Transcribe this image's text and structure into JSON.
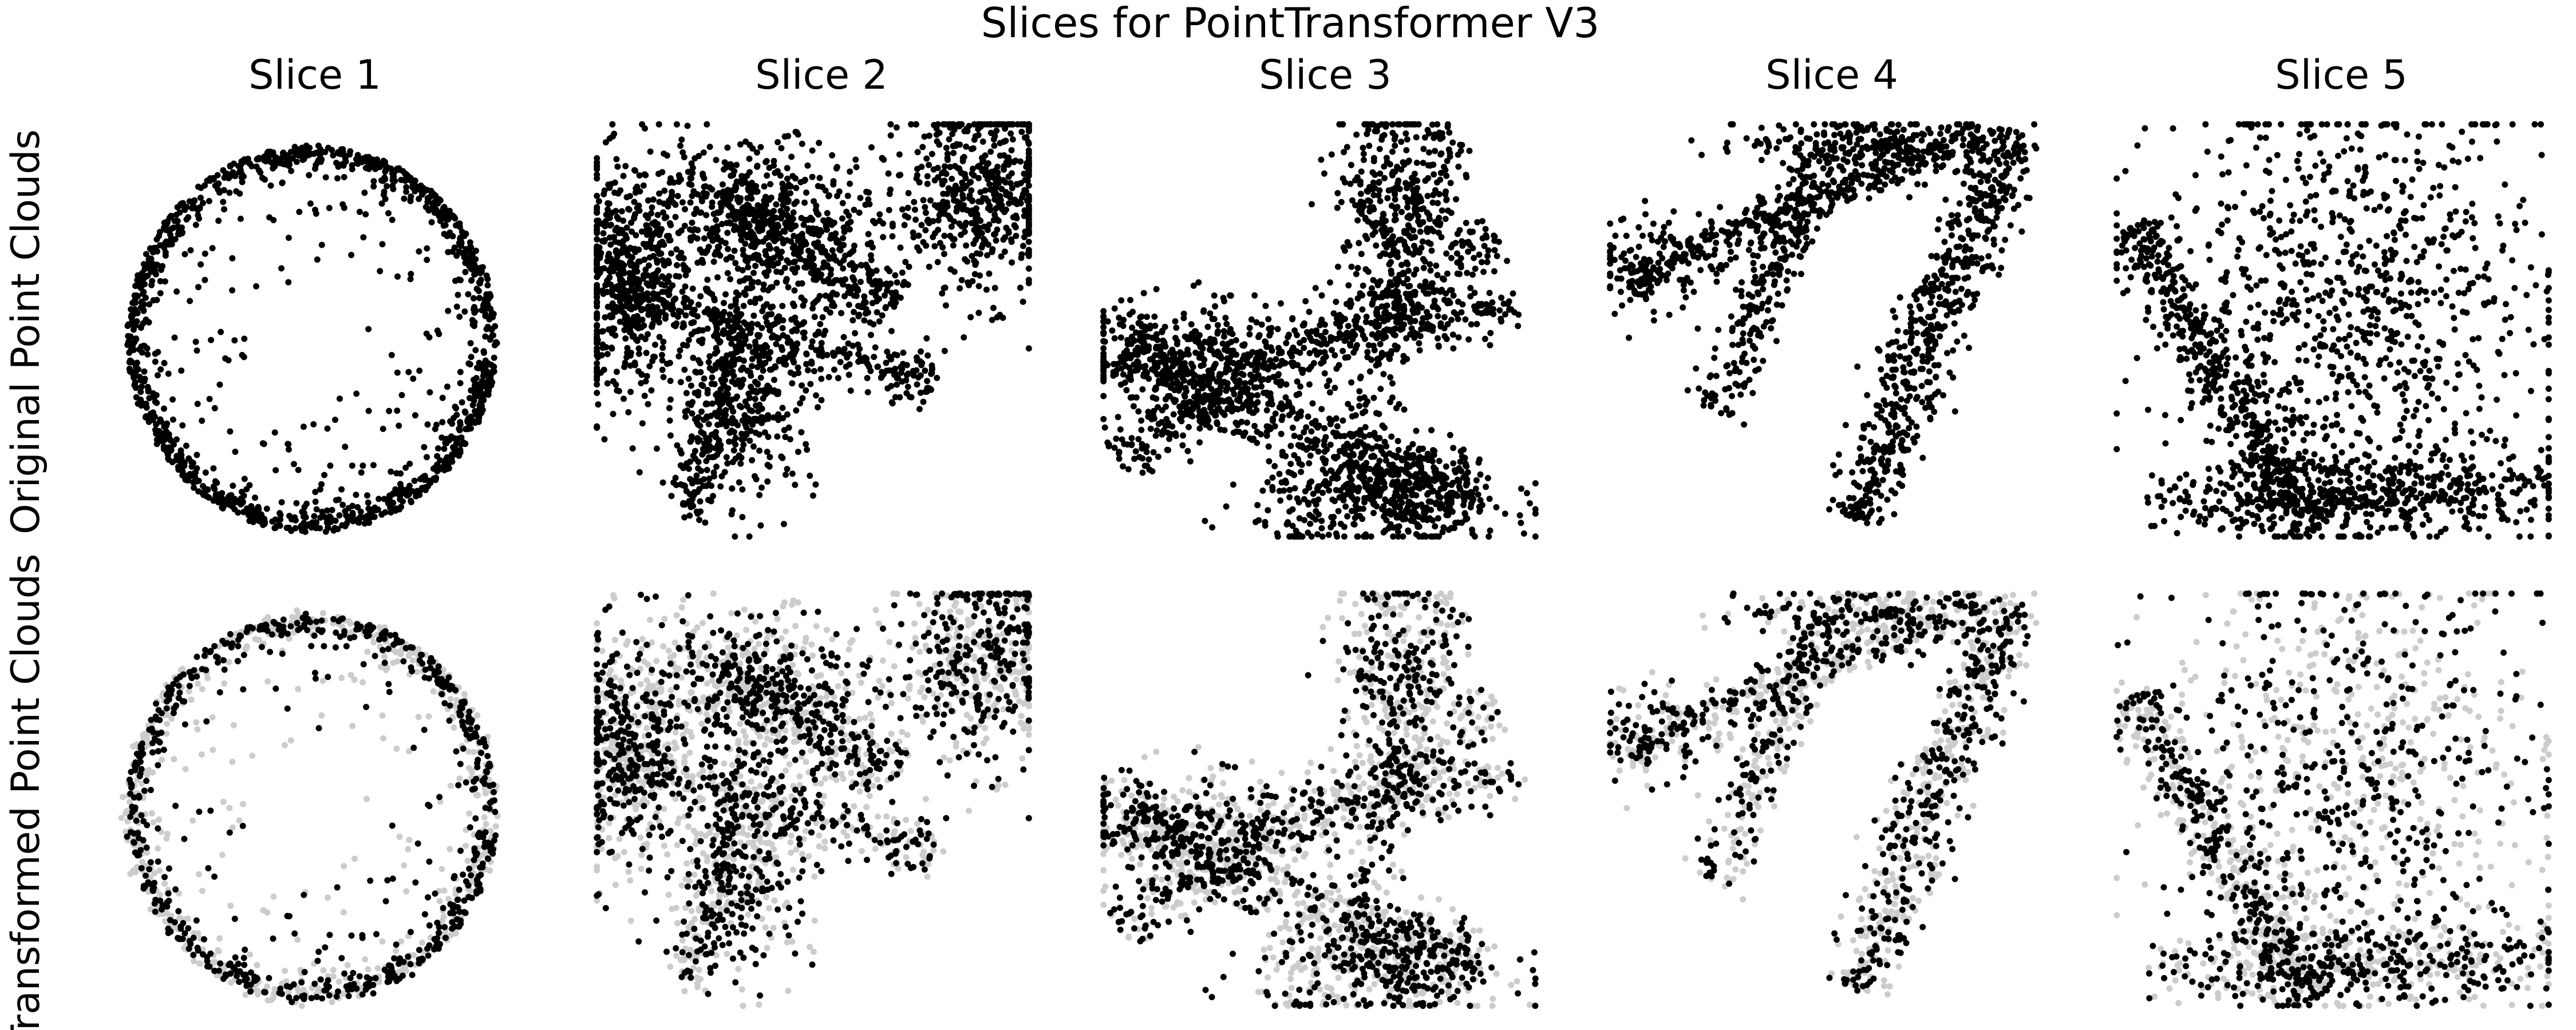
{
  "figure": {
    "title": "Slices for PointTransformer V3",
    "column_titles": [
      "Slice 1",
      "Slice 2",
      "Slice 3",
      "Slice 4",
      "Slice 5"
    ],
    "row_labels": [
      "Original Point Clouds",
      "Transformed Point Clouds"
    ],
    "colors": {
      "point": "#000000",
      "faded_point": "#cccccc",
      "background": "#ffffff"
    }
  },
  "chart_data": {
    "type": "scatter",
    "title": "Slices for PointTransformer V3",
    "grid": false,
    "axes_visible": false,
    "xlim": [
      0,
      1
    ],
    "ylim": [
      0,
      1
    ],
    "panels_layout": {
      "rows": 2,
      "cols": 5
    },
    "rows": [
      {
        "label": "Original Point Clouds",
        "series": [
          {
            "color": "#000000"
          }
        ]
      },
      {
        "label": "Transformed Point Clouds",
        "series": [
          {
            "color": "#cccccc"
          },
          {
            "color": "#000000"
          }
        ]
      }
    ],
    "columns": [
      {
        "title": "Slice 1",
        "shape": "ring",
        "center": [
          0.5,
          0.48
        ],
        "radii": [
          0.42,
          0.46
        ],
        "thickness": 0.06,
        "points": 1300
      },
      {
        "title": "Slice 2",
        "shape": "strands",
        "blobs": [
          {
            "c": [
              0.07,
              0.6
            ],
            "s": [
              0.06,
              0.14
            ],
            "n": 450
          },
          {
            "c": [
              0.88,
              0.82
            ],
            "s": [
              0.09,
              0.12
            ],
            "n": 520
          },
          {
            "c": [
              0.35,
              0.75
            ],
            "s": [
              0.16,
              0.1
            ],
            "n": 600
          },
          {
            "c": [
              0.35,
              0.35
            ],
            "s": [
              0.08,
              0.12
            ],
            "n": 350
          }
        ],
        "lines": [
          {
            "a": [
              0.05,
              0.58
            ],
            "b": [
              0.78,
              0.38
            ],
            "w": 0.035,
            "n": 350
          },
          {
            "a": [
              0.3,
              0.82
            ],
            "b": [
              0.68,
              0.55
            ],
            "w": 0.04,
            "n": 300
          },
          {
            "a": [
              0.22,
              0.05
            ],
            "b": [
              0.3,
              0.45
            ],
            "w": 0.03,
            "n": 150
          }
        ]
      },
      {
        "title": "Slice 3",
        "shape": "strands",
        "blobs": [
          {
            "c": [
              0.64,
              0.1
            ],
            "s": [
              0.14,
              0.06
            ],
            "n": 450
          },
          {
            "c": [
              0.65,
              0.82
            ],
            "s": [
              0.06,
              0.12
            ],
            "n": 250
          },
          {
            "c": [
              0.2,
              0.45
            ],
            "s": [
              0.14,
              0.06
            ],
            "n": 300
          }
        ],
        "lines": [
          {
            "a": [
              0.03,
              0.2
            ],
            "b": [
              0.9,
              0.72
            ],
            "w": 0.04,
            "n": 450
          },
          {
            "a": [
              0.05,
              0.45
            ],
            "b": [
              0.86,
              0.1
            ],
            "w": 0.04,
            "n": 550
          },
          {
            "a": [
              0.55,
              0.5
            ],
            "b": [
              0.95,
              0.55
            ],
            "w": 0.03,
            "n": 150
          },
          {
            "a": [
              0.6,
              0.3
            ],
            "b": [
              0.8,
              0.97
            ],
            "w": 0.035,
            "n": 200
          }
        ]
      },
      {
        "title": "Slice 4",
        "shape": "strands",
        "blobs": [
          {
            "c": [
              0.6,
              0.95
            ],
            "s": [
              0.15,
              0.03
            ],
            "n": 200
          },
          {
            "c": [
              0.1,
              0.65
            ],
            "s": [
              0.06,
              0.06
            ],
            "n": 100
          }
        ],
        "lines": [
          {
            "a": [
              0.05,
              0.62
            ],
            "b": [
              0.85,
              0.97
            ],
            "w": 0.03,
            "n": 400
          },
          {
            "a": [
              0.57,
              0.05
            ],
            "b": [
              0.92,
              0.98
            ],
            "w": 0.04,
            "n": 600
          },
          {
            "a": [
              0.25,
              0.3
            ],
            "b": [
              0.5,
              0.95
            ],
            "w": 0.03,
            "n": 250
          }
        ]
      },
      {
        "title": "Slice 5",
        "shape": "strands",
        "blobs": [
          {
            "c": [
              0.55,
              0.55
            ],
            "s": [
              0.22,
              0.26
            ],
            "n": 900
          },
          {
            "c": [
              0.6,
              0.12
            ],
            "s": [
              0.22,
              0.06
            ],
            "n": 350
          }
        ],
        "lines": [
          {
            "a": [
              0.05,
              0.75
            ],
            "b": [
              0.45,
              0.02
            ],
            "w": 0.035,
            "n": 500
          },
          {
            "a": [
              0.1,
              0.08
            ],
            "b": [
              0.95,
              0.12
            ],
            "w": 0.025,
            "n": 150
          }
        ]
      }
    ]
  }
}
